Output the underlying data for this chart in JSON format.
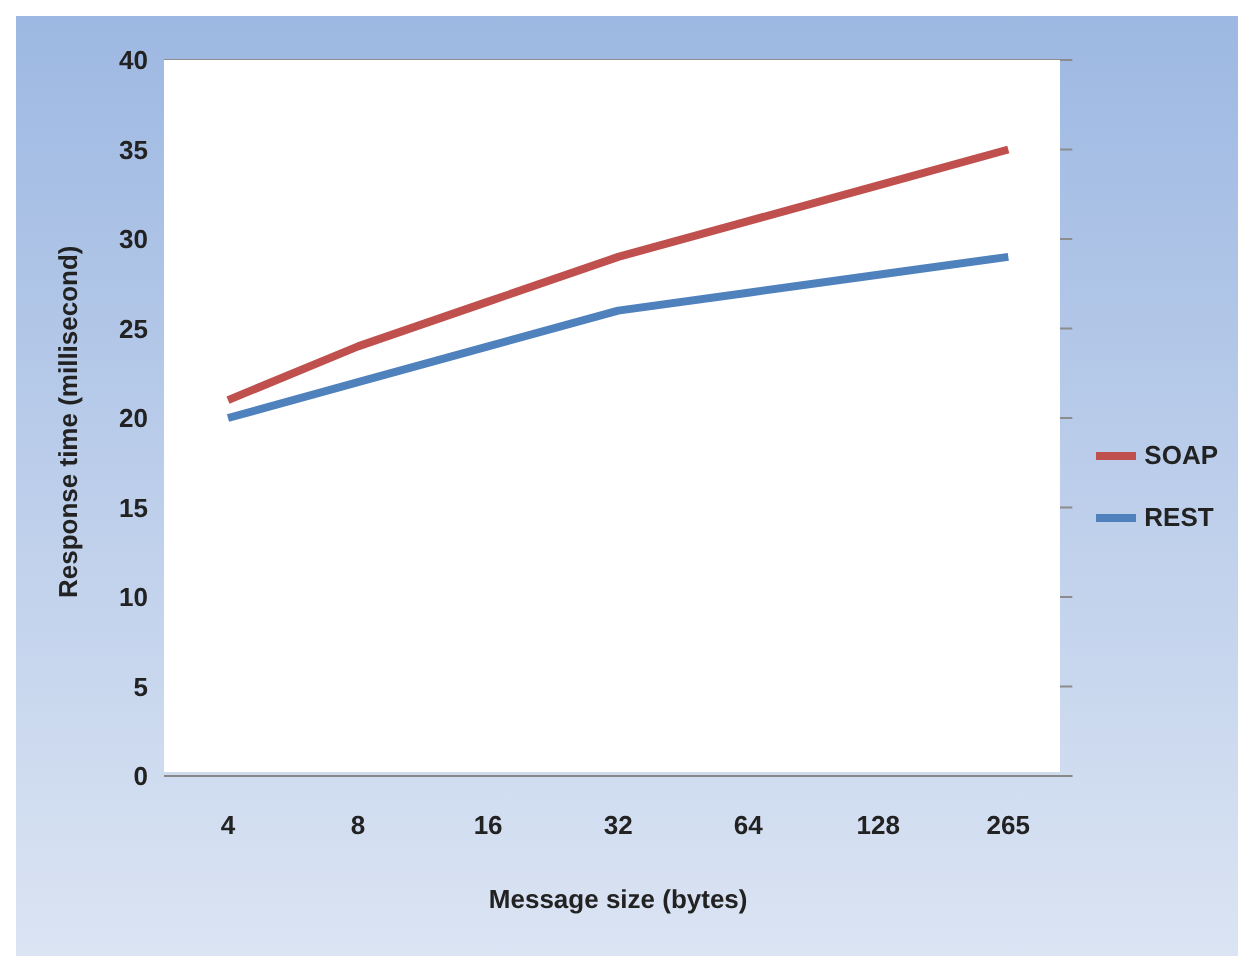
{
  "chart_data": {
    "type": "line",
    "xlabel": "Message size (bytes)",
    "ylabel": "Response time (millisecond)",
    "categories": [
      "4",
      "8",
      "16",
      "32",
      "64",
      "128",
      "265"
    ],
    "series": [
      {
        "name": "SOAP",
        "color": "#c0504d",
        "values": [
          21,
          24,
          26.5,
          29,
          31,
          33,
          35
        ]
      },
      {
        "name": "REST",
        "color": "#4f81bd",
        "values": [
          20,
          22,
          24,
          26,
          27,
          28,
          29
        ]
      }
    ],
    "ylim": [
      0,
      40
    ],
    "yticks": [
      0,
      5,
      10,
      15,
      20,
      25,
      30,
      35,
      40
    ],
    "grid": "y",
    "legend": "right",
    "marker": "none",
    "line_style": "solid"
  }
}
